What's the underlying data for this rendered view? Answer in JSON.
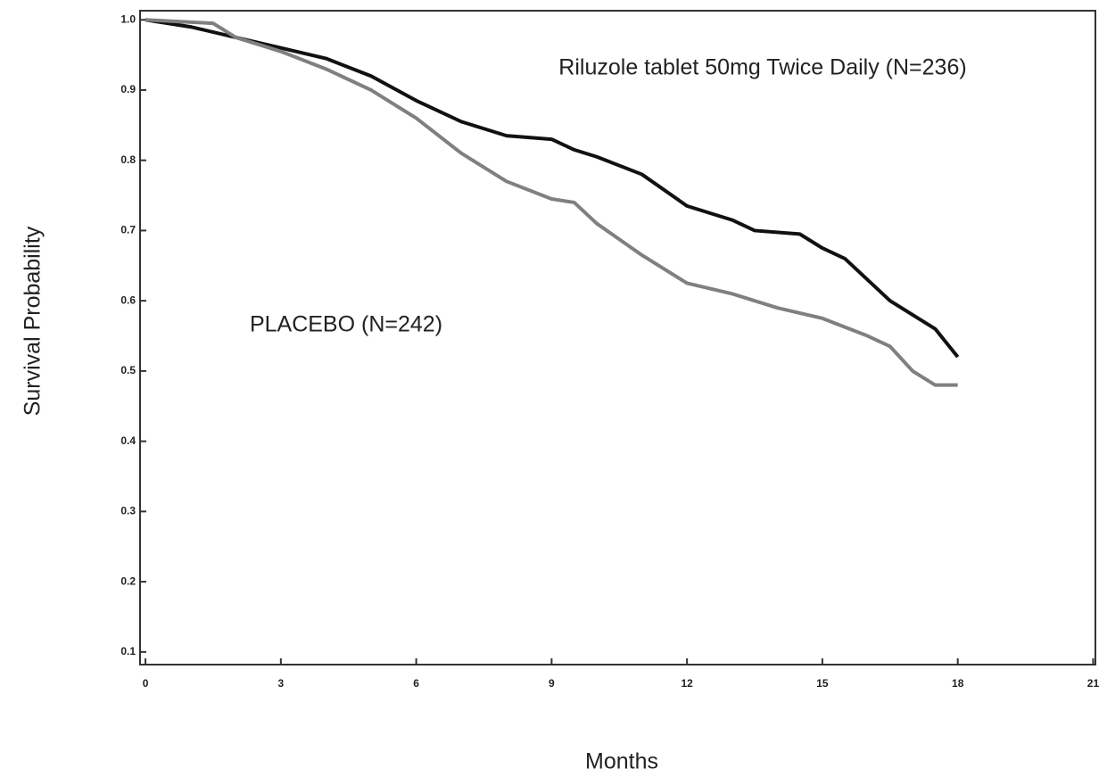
{
  "chart_data": {
    "type": "line",
    "x_label": "Months",
    "y_label": "Survival Probability",
    "xlim": [
      -0.12,
      21.05
    ],
    "ylim": [
      0.082,
      1.013
    ],
    "xticks": [
      0,
      3,
      6,
      9,
      12,
      15,
      18,
      21
    ],
    "yticks": [
      0.1,
      0.2,
      0.3,
      0.4,
      0.5,
      0.6,
      0.7,
      0.8,
      0.9,
      {
        "value": 1.0,
        "label": "1.0"
      }
    ],
    "series": [
      {
        "name": "Riluzole tablet 50mg Twice Daily (N=236)",
        "color": "#111111",
        "x": [
          0,
          1,
          2,
          3,
          4,
          5,
          6,
          7,
          8,
          9,
          9.5,
          10,
          11,
          12,
          13,
          13.5,
          14.5,
          15,
          15.5,
          16,
          16.5,
          17,
          17.5,
          18
        ],
        "values": [
          1.0,
          0.99,
          0.975,
          0.96,
          0.945,
          0.92,
          0.885,
          0.855,
          0.835,
          0.83,
          0.815,
          0.805,
          0.78,
          0.735,
          0.715,
          0.7,
          0.695,
          0.675,
          0.66,
          0.63,
          0.6,
          0.58,
          0.56,
          0.52
        ]
      },
      {
        "name": "PLACEBO (N=242)",
        "color": "#808080",
        "x": [
          0,
          1.5,
          2,
          3,
          4,
          5,
          6,
          7,
          8,
          9,
          9.5,
          10,
          11,
          12,
          13,
          14,
          15,
          16,
          16.5,
          17,
          17.5,
          18
        ],
        "values": [
          1.0,
          0.995,
          0.975,
          0.955,
          0.93,
          0.9,
          0.86,
          0.81,
          0.77,
          0.745,
          0.74,
          0.71,
          0.665,
          0.625,
          0.61,
          0.59,
          0.575,
          0.55,
          0.535,
          0.5,
          0.48,
          0.48
        ]
      }
    ]
  }
}
